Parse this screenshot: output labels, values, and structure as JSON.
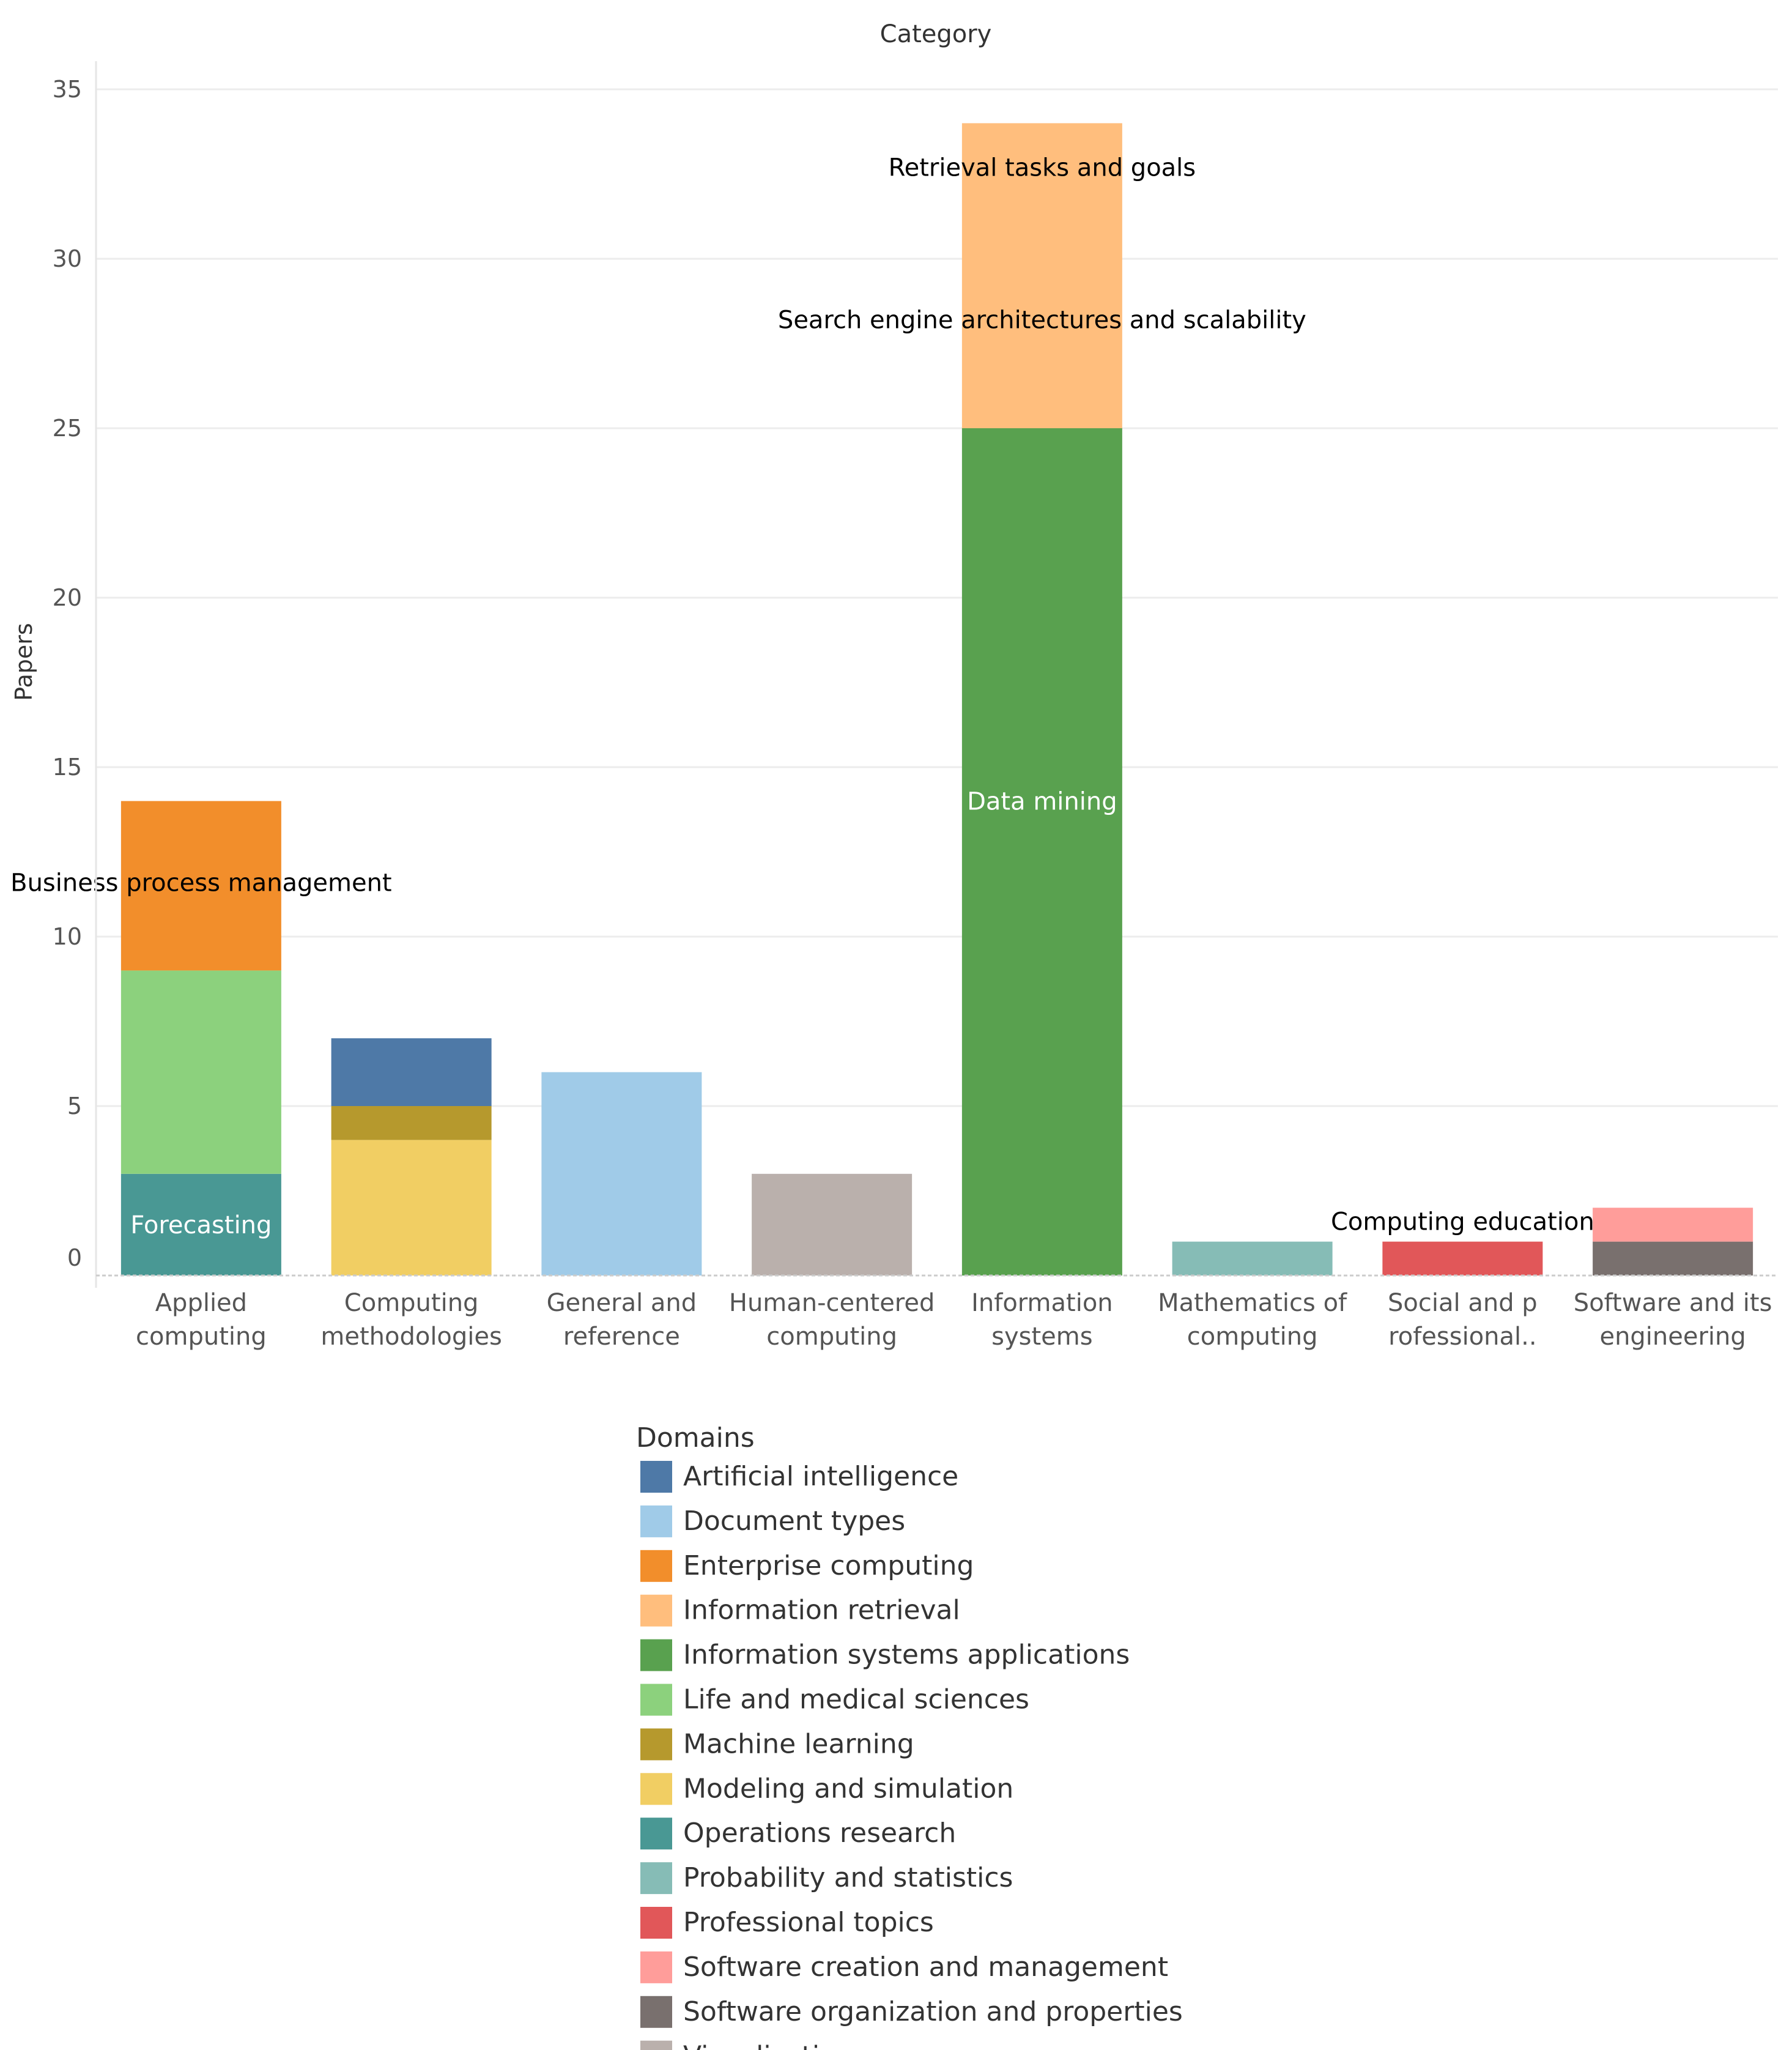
{
  "chart_data": {
    "type": "bar",
    "stacked": true,
    "title": "Category",
    "xlabel": "",
    "ylabel": "Papers",
    "ylim": [
      0,
      35
    ],
    "y_ticks": [
      0,
      5,
      10,
      15,
      20,
      25,
      30,
      35
    ],
    "grid": true,
    "categories": [
      "Applied computing",
      "Computing methodologies",
      "General and reference",
      "Human-centered computing",
      "Information systems",
      "Mathematics of computing",
      "Social and professional topics",
      "Software and its engineering"
    ],
    "category_tick_labels": [
      [
        "Applied",
        "computing"
      ],
      [
        "Computing",
        "methodologies"
      ],
      [
        "General and",
        "reference"
      ],
      [
        "Human-centered",
        "computing"
      ],
      [
        "Information",
        "systems"
      ],
      [
        "Mathematics of",
        "computing"
      ],
      [
        "Social and p",
        "rofessional.."
      ],
      [
        "Software and its",
        "engineering"
      ]
    ],
    "series": [
      {
        "name": "Artificial intelligence",
        "color": "#4e79a7",
        "values": [
          0,
          2,
          0,
          0,
          0,
          0,
          0,
          0
        ]
      },
      {
        "name": "Document types",
        "color": "#a0cbe8",
        "values": [
          0,
          0,
          6,
          0,
          0,
          0,
          0,
          0
        ]
      },
      {
        "name": "Enterprise computing",
        "color": "#f28e2b",
        "values": [
          5,
          0,
          0,
          0,
          0,
          0,
          0,
          0
        ]
      },
      {
        "name": "Information retrieval",
        "color": "#ffbe7d",
        "values": [
          0,
          0,
          0,
          0,
          9,
          0,
          0,
          0
        ]
      },
      {
        "name": "Information systems applications",
        "color": "#59a14f",
        "values": [
          0,
          0,
          0,
          0,
          25,
          0,
          0,
          0
        ]
      },
      {
        "name": "Life and medical sciences",
        "color": "#8cd17d",
        "values": [
          6,
          0,
          0,
          0,
          0,
          0,
          0,
          0
        ]
      },
      {
        "name": "Machine learning",
        "color": "#b6992d",
        "values": [
          0,
          1,
          0,
          0,
          0,
          0,
          0,
          0
        ]
      },
      {
        "name": "Modeling and simulation",
        "color": "#f1ce63",
        "values": [
          0,
          4,
          0,
          0,
          0,
          0,
          0,
          0
        ]
      },
      {
        "name": "Operations research",
        "color": "#499894",
        "values": [
          3,
          0,
          0,
          0,
          0,
          0,
          0,
          0
        ]
      },
      {
        "name": "Probability and statistics",
        "color": "#86bcb6",
        "values": [
          0,
          0,
          0,
          0,
          0,
          1,
          0,
          0
        ]
      },
      {
        "name": "Professional topics",
        "color": "#e15759",
        "values": [
          0,
          0,
          0,
          0,
          0,
          0,
          1,
          0
        ]
      },
      {
        "name": "Software creation and management",
        "color": "#ff9d9a",
        "values": [
          0,
          0,
          0,
          0,
          0,
          0,
          0,
          1
        ]
      },
      {
        "name": "Software organization and properties",
        "color": "#79706e",
        "values": [
          0,
          0,
          0,
          0,
          0,
          0,
          0,
          1
        ]
      },
      {
        "name": "Visualization",
        "color": "#bab0ac",
        "values": [
          0,
          0,
          0,
          3,
          0,
          0,
          0,
          0
        ]
      }
    ],
    "stacks": [
      [
        {
          "series": "Operations research",
          "value": 3
        },
        {
          "series": "Life and medical sciences",
          "value": 6
        },
        {
          "series": "Enterprise computing",
          "value": 5
        }
      ],
      [
        {
          "series": "Modeling and simulation",
          "value": 4
        },
        {
          "series": "Machine learning",
          "value": 1
        },
        {
          "series": "Artificial intelligence",
          "value": 2
        }
      ],
      [
        {
          "series": "Document types",
          "value": 6
        }
      ],
      [
        {
          "series": "Visualization",
          "value": 3
        }
      ],
      [
        {
          "series": "Information systems applications",
          "value": 25
        },
        {
          "series": "Information retrieval",
          "value": 9
        }
      ],
      [
        {
          "series": "Probability and statistics",
          "value": 1
        }
      ],
      [
        {
          "series": "Professional topics",
          "value": 1
        }
      ],
      [
        {
          "series": "Software organization and properties",
          "value": 1
        },
        {
          "series": "Software creation and management",
          "value": 1
        }
      ]
    ],
    "annotations": [
      {
        "text": "Forecasting",
        "category_index": 0,
        "y": 1.5,
        "color": "#ffffff"
      },
      {
        "text": "Business process management",
        "category_index": 0,
        "y": 11.6,
        "color": "#000000"
      },
      {
        "text": "Data mining",
        "category_index": 4,
        "y": 14,
        "color": "#ffffff"
      },
      {
        "text": "Search engine architectures and scalability",
        "category_index": 4,
        "y": 28.2,
        "color": "#000000"
      },
      {
        "text": "Retrieval tasks and goals",
        "category_index": 4,
        "y": 32.7,
        "color": "#000000"
      },
      {
        "text": "Computing education",
        "category_index": 6,
        "y": 1.6,
        "color": "#000000"
      }
    ],
    "legend": {
      "title": "Domains",
      "placement": "bottom-center"
    }
  }
}
